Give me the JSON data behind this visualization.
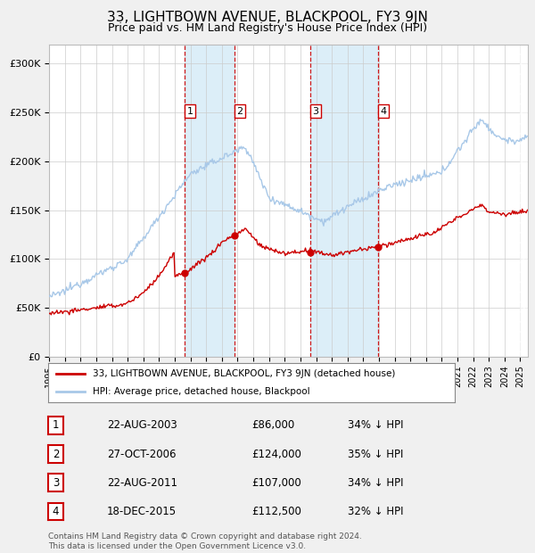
{
  "title": "33, LIGHTBOWN AVENUE, BLACKPOOL, FY3 9JN",
  "subtitle": "Price paid vs. HM Land Registry's House Price Index (HPI)",
  "title_fontsize": 11,
  "subtitle_fontsize": 9,
  "ylim": [
    0,
    320000
  ],
  "yticks": [
    0,
    50000,
    100000,
    150000,
    200000,
    250000,
    300000
  ],
  "ytick_labels": [
    "£0",
    "£50K",
    "£100K",
    "£150K",
    "£200K",
    "£250K",
    "£300K"
  ],
  "hpi_color": "#a8c8e8",
  "price_color": "#cc0000",
  "background_color": "#f0f0f0",
  "plot_bg_color": "#ffffff",
  "grid_color": "#cccccc",
  "shade_color": "#dceef8",
  "dashed_line_color": "#cc0000",
  "transactions": [
    {
      "label": "1",
      "date_num": 2003.65,
      "price": 86000,
      "date_str": "22-AUG-2003",
      "pct": "34% ↓ HPI"
    },
    {
      "label": "2",
      "date_num": 2006.82,
      "price": 124000,
      "date_str": "27-OCT-2006",
      "pct": "35% ↓ HPI"
    },
    {
      "label": "3",
      "date_num": 2011.65,
      "price": 107000,
      "date_str": "22-AUG-2011",
      "pct": "34% ↓ HPI"
    },
    {
      "label": "4",
      "date_num": 2015.97,
      "price": 112500,
      "date_str": "18-DEC-2015",
      "pct": "32% ↓ HPI"
    }
  ],
  "legend_house_label": "33, LIGHTBOWN AVENUE, BLACKPOOL, FY3 9JN (detached house)",
  "legend_hpi_label": "HPI: Average price, detached house, Blackpool",
  "footnote": "Contains HM Land Registry data © Crown copyright and database right 2024.\nThis data is licensed under the Open Government Licence v3.0.",
  "xmin": 1995.0,
  "xmax": 2025.5
}
